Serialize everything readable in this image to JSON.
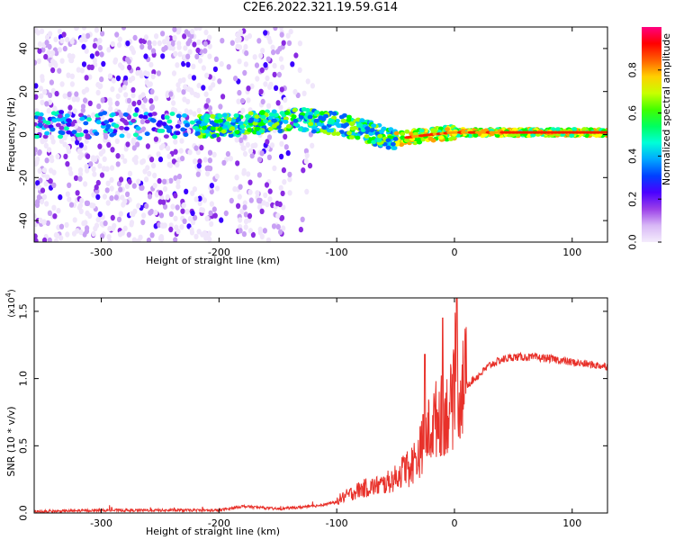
{
  "figure": {
    "title": "C2E6.2022.321.19.59.G14"
  },
  "chart_data": [
    {
      "type": "heatmap",
      "title": "C2E6.2022.321.19.59.G14",
      "xlabel": "Height of straight line (km)",
      "ylabel": "Frequency (Hz)",
      "xlim": [
        -357,
        130
      ],
      "ylim": [
        -50,
        50
      ],
      "x_ticks": [
        -300,
        -200,
        -100,
        0,
        100
      ],
      "y_ticks": [
        -40,
        -20,
        0,
        20,
        40
      ],
      "colorbar": {
        "label": "Normalized spectral amplitude",
        "range": [
          0.0,
          1.0
        ],
        "ticks": [
          0.0,
          0.2,
          0.4,
          0.6,
          0.8
        ],
        "colors": [
          "#f0e6fb",
          "#c8a0f4",
          "#8a2be2",
          "#3a00ff",
          "#0060ff",
          "#00c8ff",
          "#00ffb0",
          "#00ff00",
          "#a0ff00",
          "#ffff00",
          "#ffa000",
          "#ff2000",
          "#ff0060"
        ]
      },
      "signal_track": [
        {
          "x": -357,
          "y": 5
        },
        {
          "x": -280,
          "y": 4
        },
        {
          "x": -200,
          "y": 4
        },
        {
          "x": -130,
          "y": 7
        },
        {
          "x": -100,
          "y": 5
        },
        {
          "x": -80,
          "y": 2
        },
        {
          "x": -50,
          "y": -2
        },
        {
          "x": -20,
          "y": 0
        },
        {
          "x": 0,
          "y": 1
        },
        {
          "x": 50,
          "y": 1
        },
        {
          "x": 130,
          "y": 1
        }
      ]
    },
    {
      "type": "line",
      "xlabel": "Height of straight line (km)",
      "ylabel": "SNR (10 * v/v)",
      "y_scale_label": "(x10",
      "y_scale_exp": "4",
      "y_scale_close": ")",
      "xlim": [
        -357,
        130
      ],
      "ylim": [
        0.0,
        1.6
      ],
      "x_ticks": [
        -300,
        -200,
        -100,
        0,
        100
      ],
      "y_ticks": [
        0.0,
        0.5,
        1.0,
        1.5
      ],
      "line_color": "#e8312a",
      "series": [
        {
          "x": [
            -357,
            -300,
            -200,
            -180,
            -150,
            -120,
            -100,
            -80,
            -60,
            -50,
            -40,
            -30,
            -25,
            -20,
            -15,
            -10,
            -5,
            0,
            5,
            10,
            20,
            30,
            40,
            50,
            60,
            80,
            100,
            120,
            130
          ],
          "values": [
            0.01,
            0.02,
            0.02,
            0.05,
            0.03,
            0.05,
            0.08,
            0.15,
            0.18,
            0.22,
            0.3,
            0.42,
            0.55,
            0.6,
            0.68,
            0.7,
            0.72,
            0.8,
            0.88,
            0.95,
            1.02,
            1.1,
            1.14,
            1.16,
            1.16,
            1.15,
            1.12,
            1.1,
            1.09
          ]
        }
      ]
    }
  ]
}
